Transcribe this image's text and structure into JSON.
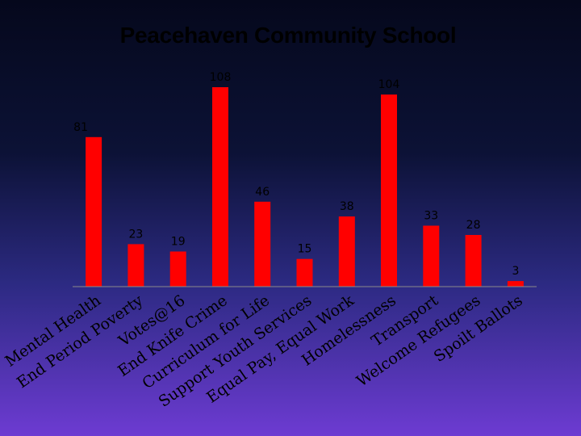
{
  "title": "Peacehaven Community School",
  "colors": {
    "bar": "#ff0000",
    "value_label": "#000000",
    "category_label": "#000000"
  },
  "chart_data": {
    "type": "bar",
    "title": "Peacehaven Community School",
    "categories": [
      "Mental Health",
      "End Period Poverty",
      "Votes@16",
      "End Knife Crime",
      "Curriculum for Life",
      "Support Youth Services",
      "Equal Pay, Equal Work",
      "Homelessness",
      "Transport",
      "Welcome Refugees",
      "Spoilt Ballots"
    ],
    "values": [
      81,
      23,
      19,
      108,
      46,
      15,
      38,
      104,
      33,
      28,
      3
    ],
    "ylim": [
      0,
      108
    ],
    "grid": false,
    "legend": "none",
    "data_labels": true,
    "xlabel": "",
    "ylabel": ""
  }
}
